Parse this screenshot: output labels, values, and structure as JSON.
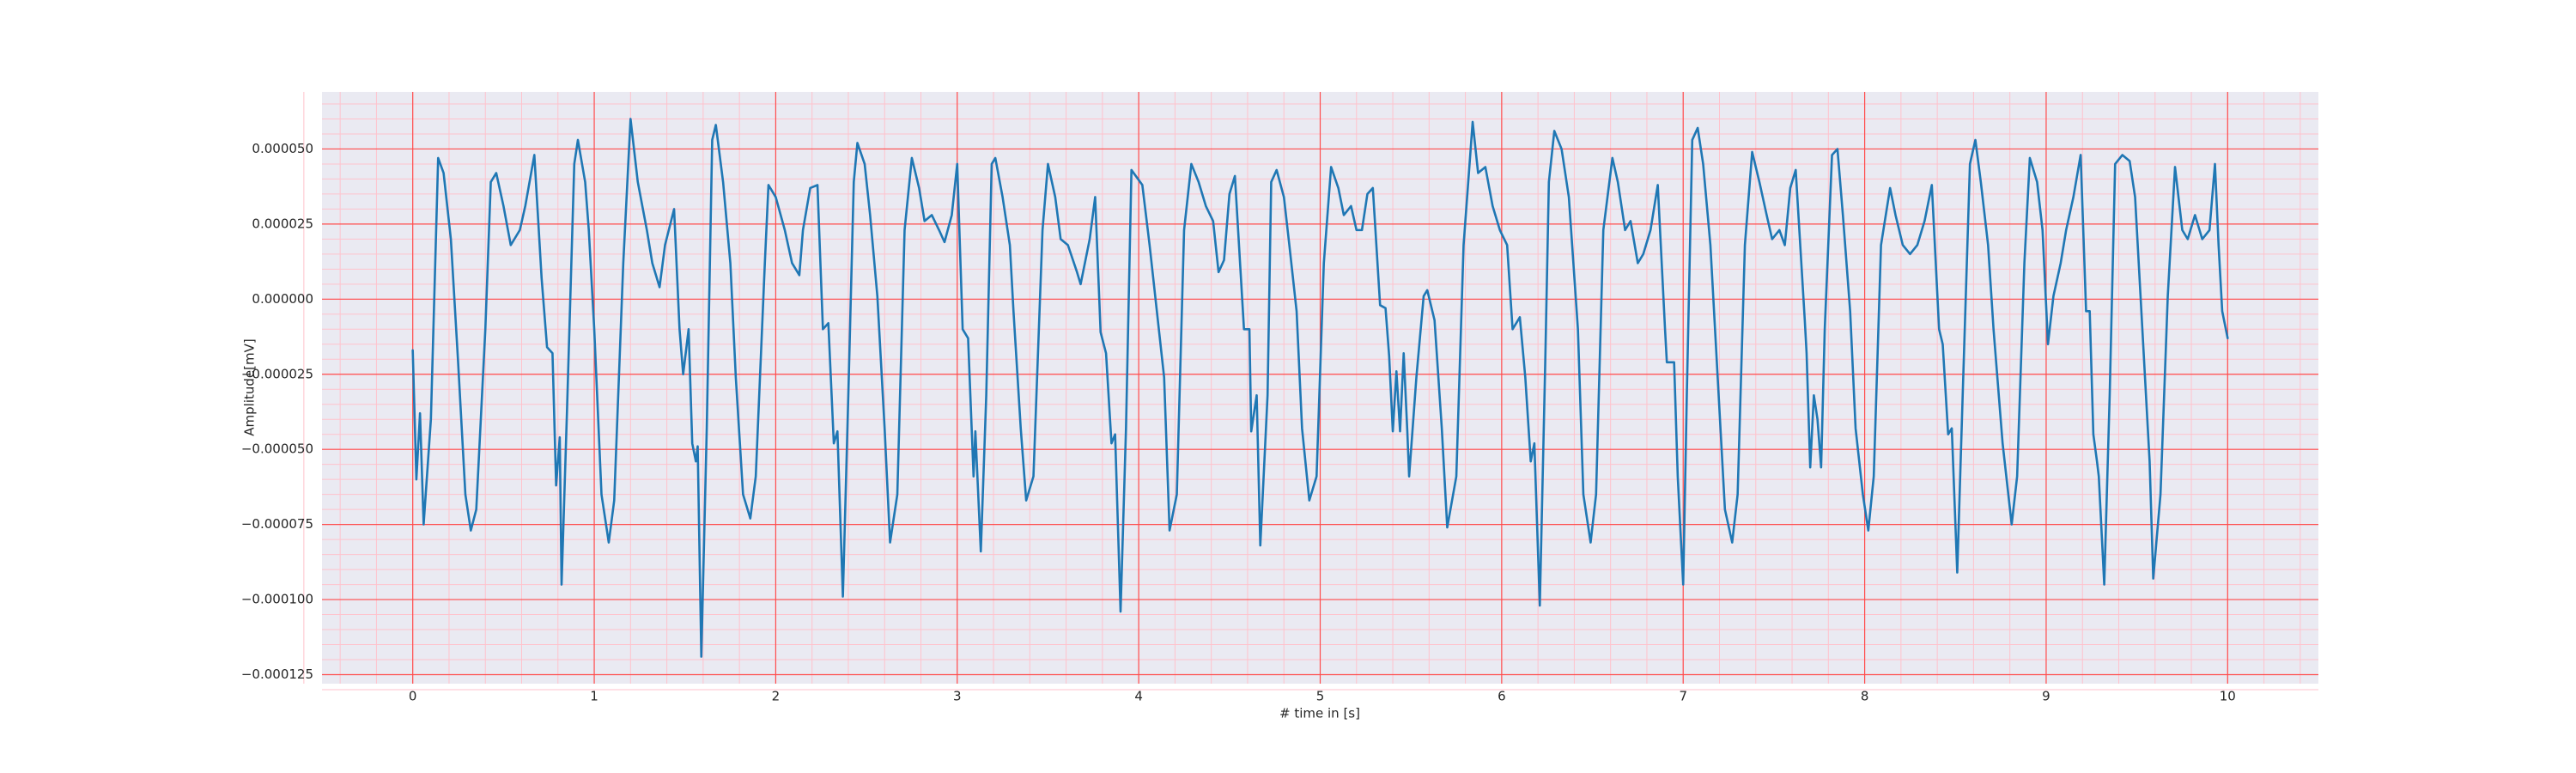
{
  "chart_data": {
    "type": "line",
    "x_label": "# time in [s]",
    "y_label": "Amplitude[mV]",
    "color": "#1f77b4",
    "background": "#eaeaf2",
    "grid": true,
    "grid_color": "#ff4d4d",
    "minor_grid": true,
    "minor_grid_color": "#ffc2cc",
    "xlim": [
      -0.5,
      10.5
    ],
    "xticks": [
      0,
      1,
      2,
      3,
      4,
      5,
      6,
      7,
      8,
      9,
      10
    ],
    "ylim": [
      -0.000128,
      6.9e-05
    ],
    "yticks": [
      {
        "value": -0.000125,
        "label": "−0.000125"
      },
      {
        "value": -0.0001,
        "label": "−0.000100"
      },
      {
        "value": -7.5e-05,
        "label": "−0.000075"
      },
      {
        "value": -5e-05,
        "label": "−0.000050"
      },
      {
        "value": -2.5e-05,
        "label": "−0.000025"
      },
      {
        "value": 0,
        "label": "0.000000"
      },
      {
        "value": 2.5e-05,
        "label": "0.000025"
      },
      {
        "value": 5e-05,
        "label": "0.000050"
      }
    ],
    "x": [
      0.0,
      0.02,
      0.04,
      0.06,
      0.1,
      0.14,
      0.17,
      0.21,
      0.25,
      0.29,
      0.32,
      0.35,
      0.4,
      0.43,
      0.46,
      0.5,
      0.54,
      0.59,
      0.62,
      0.67,
      0.71,
      0.74,
      0.77,
      0.79,
      0.81,
      0.82,
      0.85,
      0.89,
      0.91,
      0.95,
      0.97,
      1.0,
      1.04,
      1.08,
      1.11,
      1.16,
      1.2,
      1.24,
      1.29,
      1.32,
      1.36,
      1.39,
      1.44,
      1.47,
      1.49,
      1.52,
      1.54,
      1.56,
      1.57,
      1.59,
      1.62,
      1.65,
      1.67,
      1.71,
      1.75,
      1.78,
      1.82,
      1.86,
      1.89,
      1.94,
      1.96,
      2.0,
      2.05,
      2.09,
      2.13,
      2.15,
      2.19,
      2.23,
      2.26,
      2.29,
      2.32,
      2.34,
      2.37,
      2.4,
      2.43,
      2.45,
      2.49,
      2.52,
      2.56,
      2.6,
      2.63,
      2.67,
      2.71,
      2.75,
      2.79,
      2.82,
      2.86,
      2.9,
      2.93,
      2.97,
      3.0,
      3.03,
      3.06,
      3.09,
      3.1,
      3.13,
      3.16,
      3.19,
      3.21,
      3.25,
      3.29,
      3.31,
      3.35,
      3.38,
      3.42,
      3.47,
      3.5,
      3.54,
      3.57,
      3.61,
      3.66,
      3.68,
      3.73,
      3.76,
      3.79,
      3.82,
      3.85,
      3.87,
      3.9,
      3.93,
      3.96,
      4.02,
      4.06,
      4.14,
      4.17,
      4.21,
      4.25,
      4.29,
      4.33,
      4.37,
      4.41,
      4.44,
      4.47,
      4.5,
      4.53,
      4.58,
      4.61,
      4.62,
      4.65,
      4.67,
      4.71,
      4.73,
      4.76,
      4.8,
      4.83,
      4.87,
      4.9,
      4.94,
      4.98,
      5.02,
      5.06,
      5.1,
      5.13,
      5.17,
      5.2,
      5.23,
      5.26,
      5.29,
      5.33,
      5.36,
      5.38,
      5.4,
      5.42,
      5.44,
      5.46,
      5.48,
      5.49,
      5.53,
      5.57,
      5.59,
      5.63,
      5.67,
      5.7,
      5.75,
      5.79,
      5.84,
      5.87,
      5.91,
      5.95,
      5.99,
      6.03,
      6.06,
      6.1,
      6.13,
      6.16,
      6.18,
      6.21,
      6.24,
      6.26,
      6.29,
      6.33,
      6.37,
      6.42,
      6.45,
      6.49,
      6.52,
      6.56,
      6.61,
      6.64,
      6.68,
      6.71,
      6.75,
      6.78,
      6.82,
      6.86,
      6.9,
      6.91,
      6.95,
      6.97,
      7.0,
      7.02,
      7.05,
      7.08,
      7.11,
      7.15,
      7.19,
      7.23,
      7.27,
      7.3,
      7.34,
      7.38,
      7.42,
      7.46,
      7.49,
      7.53,
      7.56,
      7.59,
      7.62,
      7.67,
      7.68,
      7.7,
      7.72,
      7.74,
      7.76,
      7.78,
      7.82,
      7.85,
      7.88,
      7.92,
      7.95,
      7.99,
      8.02,
      8.05,
      8.09,
      8.14,
      8.17,
      8.21,
      8.25,
      8.29,
      8.33,
      8.37,
      8.41,
      8.43,
      8.46,
      8.48,
      8.51,
      8.54,
      8.58,
      8.61,
      8.64,
      8.68,
      8.71,
      8.76,
      8.81,
      8.84,
      8.88,
      8.91,
      8.95,
      8.98,
      9.01,
      9.04,
      9.08,
      9.11,
      9.15,
      9.19,
      9.22,
      9.24,
      9.26,
      9.28,
      9.29,
      9.32,
      9.35,
      9.38,
      9.42,
      9.46,
      9.49,
      9.53,
      9.57,
      9.59,
      9.63,
      9.67,
      9.71,
      9.75,
      9.78,
      9.82,
      9.86,
      9.9,
      9.93,
      9.95,
      9.97,
      10.0
    ],
    "values": [
      -1.7e-05,
      -6e-05,
      -3.8e-05,
      -7.5e-05,
      -4e-05,
      4.7e-05,
      4.2e-05,
      2e-05,
      -2.1e-05,
      -6.5e-05,
      -7.7e-05,
      -7e-05,
      -1e-05,
      3.9e-05,
      4.2e-05,
      3.1e-05,
      1.8e-05,
      2.3e-05,
      3.1e-05,
      4.8e-05,
      7e-06,
      -1.6e-05,
      -1.8e-05,
      -6.2e-05,
      -4.6e-05,
      -9.5e-05,
      -3.7e-05,
      4.5e-05,
      5.3e-05,
      3.9e-05,
      2.3e-05,
      -1e-05,
      -6.5e-05,
      -8.1e-05,
      -6.7e-05,
      1.2e-05,
      6e-05,
      3.9e-05,
      2.3e-05,
      1.2e-05,
      4e-06,
      1.8e-05,
      3e-05,
      -1e-05,
      -2.5e-05,
      -1e-05,
      -4.8e-05,
      -5.4e-05,
      -4.9e-05,
      -0.000119,
      -4.3e-05,
      5.3e-05,
      5.8e-05,
      3.9e-05,
      1.2e-05,
      -2.6e-05,
      -6.5e-05,
      -7.3e-05,
      -5.9e-05,
      1.2e-05,
      3.8e-05,
      3.4e-05,
      2.3e-05,
      1.2e-05,
      8e-06,
      2.3e-05,
      3.7e-05,
      3.8e-05,
      -1e-05,
      -8e-06,
      -4.8e-05,
      -4.4e-05,
      -9.9e-05,
      -3.2e-05,
      3.9e-05,
      5.2e-05,
      4.5e-05,
      2.8e-05,
      1e-06,
      -4.3e-05,
      -8.1e-05,
      -6.5e-05,
      2.3e-05,
      4.7e-05,
      3.7e-05,
      2.6e-05,
      2.8e-05,
      2.3e-05,
      1.9e-05,
      2.8e-05,
      4.5e-05,
      -1e-05,
      -1.3e-05,
      -5.9e-05,
      -4.4e-05,
      -8.4e-05,
      -3.2e-05,
      4.5e-05,
      4.7e-05,
      3.4e-05,
      1.8e-05,
      -4e-06,
      -4.3e-05,
      -6.7e-05,
      -5.9e-05,
      2.3e-05,
      4.5e-05,
      3.4e-05,
      2e-05,
      1.8e-05,
      9e-06,
      5e-06,
      2e-05,
      3.4e-05,
      -1.1e-05,
      -1.8e-05,
      -4.8e-05,
      -4.5e-05,
      -0.000104,
      -4.3e-05,
      4.3e-05,
      3.8e-05,
      1.8e-05,
      -2.6e-05,
      -7.7e-05,
      -6.5e-05,
      2.3e-05,
      4.5e-05,
      3.9e-05,
      3.1e-05,
      2.6e-05,
      9e-06,
      1.3e-05,
      3.5e-05,
      4.1e-05,
      -1e-05,
      -1e-05,
      -4.4e-05,
      -3.2e-05,
      -8.2e-05,
      -3.2e-05,
      3.9e-05,
      4.3e-05,
      3.4e-05,
      1.8e-05,
      -4e-06,
      -4.3e-05,
      -6.7e-05,
      -5.9e-05,
      1.2e-05,
      4.4e-05,
      3.7e-05,
      2.8e-05,
      3.1e-05,
      2.3e-05,
      2.3e-05,
      3.5e-05,
      3.7e-05,
      -2e-06,
      -3e-06,
      -1.9e-05,
      -4.4e-05,
      -2.4e-05,
      -4.4e-05,
      -1.8e-05,
      -4.4e-05,
      -5.9e-05,
      -2.6e-05,
      1e-06,
      3e-06,
      -7e-06,
      -4.3e-05,
      -7.6e-05,
      -5.9e-05,
      1.8e-05,
      5.9e-05,
      4.2e-05,
      4.4e-05,
      3.1e-05,
      2.3e-05,
      1.8e-05,
      -1e-05,
      -6e-06,
      -2.6e-05,
      -5.4e-05,
      -4.8e-05,
      -0.000102,
      -2.1e-05,
      3.9e-05,
      5.6e-05,
      5e-05,
      3.4e-05,
      -1e-05,
      -6.5e-05,
      -8.1e-05,
      -6.5e-05,
      2.3e-05,
      4.7e-05,
      3.9e-05,
      2.3e-05,
      2.6e-05,
      1.2e-05,
      1.5e-05,
      2.3e-05,
      3.8e-05,
      -1e-05,
      -2.1e-05,
      -2.1e-05,
      -5.9e-05,
      -9.5e-05,
      -3.2e-05,
      5.3e-05,
      5.7e-05,
      4.5e-05,
      1.8e-05,
      -2.6e-05,
      -7e-05,
      -8.1e-05,
      -6.5e-05,
      1.8e-05,
      4.9e-05,
      3.9e-05,
      2.8e-05,
      2e-05,
      2.3e-05,
      1.8e-05,
      3.7e-05,
      4.3e-05,
      -7e-06,
      -1.8e-05,
      -5.6e-05,
      -3.2e-05,
      -4e-05,
      -5.6e-05,
      -1e-05,
      4.8e-05,
      5e-05,
      2.8e-05,
      -4e-06,
      -4.3e-05,
      -6.5e-05,
      -7.7e-05,
      -5.9e-05,
      1.8e-05,
      3.7e-05,
      2.8e-05,
      1.8e-05,
      1.5e-05,
      1.8e-05,
      2.6e-05,
      3.8e-05,
      -1e-05,
      -1.5e-05,
      -4.5e-05,
      -4.3e-05,
      -9.1e-05,
      -3.2e-05,
      4.5e-05,
      5.3e-05,
      3.9e-05,
      1.8e-05,
      -1e-05,
      -4.8e-05,
      -7.5e-05,
      -5.9e-05,
      1.2e-05,
      4.7e-05,
      3.9e-05,
      2.3e-05,
      -1.5e-05,
      1e-06,
      1.2e-05,
      2.3e-05,
      3.4e-05,
      4.8e-05,
      -4e-06,
      -4e-06,
      -4.5e-05,
      -5.4e-05,
      -5.9e-05,
      -9.5e-05,
      -3.2e-05,
      4.5e-05,
      4.8e-05,
      4.6e-05,
      3.4e-05,
      -1e-05,
      -5.4e-05,
      -9.3e-05,
      -6.5e-05,
      1e-06,
      4.4e-05,
      2.3e-05,
      2e-05,
      2.8e-05,
      2e-05,
      2.3e-05,
      4.5e-05,
      1.8e-05,
      -4e-06,
      -1.3e-05
    ]
  }
}
